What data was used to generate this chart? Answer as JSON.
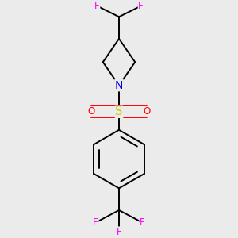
{
  "background_color": "#ebebeb",
  "bond_color": "#000000",
  "N_color": "#0000ee",
  "S_color": "#cccc00",
  "O_color": "#ff0000",
  "F_color": "#ff00ff",
  "font_size": 8.5,
  "line_width": 1.4,
  "figsize": [
    3.0,
    3.0
  ],
  "dpi": 100,
  "xlim": [
    -1.2,
    1.2
  ],
  "ylim": [
    -1.6,
    1.6
  ]
}
